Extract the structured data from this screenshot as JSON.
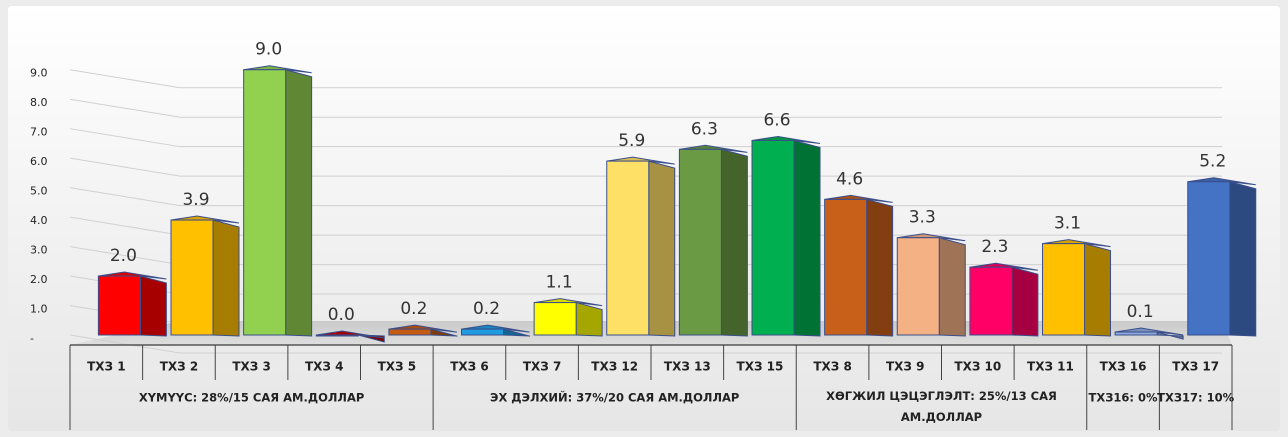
{
  "chart_data": {
    "type": "bar3d",
    "categories": [
      "ТХЗ 1",
      "ТХЗ 2",
      "ТХЗ 3",
      "ТХЗ 4",
      "ТХЗ 5",
      "ТХЗ 6",
      "ТХЗ 7",
      "ТХЗ 12",
      "ТХЗ 13",
      "ТХЗ 15",
      "ТХЗ 8",
      "ТХЗ 9",
      "ТХЗ 10",
      "ТХЗ 11",
      "ТХЗ 16",
      "ТХЗ 17"
    ],
    "values": [
      2.0,
      3.9,
      9.0,
      0.0,
      0.2,
      0.2,
      1.1,
      5.9,
      6.3,
      6.6,
      4.6,
      3.3,
      2.3,
      3.1,
      0.1,
      5.2
    ],
    "value_labels": [
      "2.0",
      "3.9",
      "9.0",
      "0.0",
      "0.2",
      "0.2",
      "1.1",
      "5.9",
      "6.3",
      "6.6",
      "4.6",
      "3.3",
      "2.3",
      "3.1",
      "0.1",
      "5.2"
    ],
    "colors": [
      "#ff0000",
      "#ffc000",
      "#92d050",
      "#c00000",
      "#c55a11",
      "#1f9be0",
      "#ffff00",
      "#ffe066",
      "#6a9a44",
      "#00b050",
      "#c8601a",
      "#f4b183",
      "#ff0066",
      "#ffc000",
      "#8faadc",
      "#4472c4"
    ],
    "groups": [
      {
        "name": "ХҮМҮҮС:  28%/15  САЯ  АМ.ДОЛЛАР",
        "count": 5
      },
      {
        "name": "ЭХ  ДЭЛХИЙ:  37%/20  САЯ  АМ.ДОЛЛАР",
        "count": 5
      },
      {
        "name": "ХӨГЖИЛ  ЦЭЦЭГЛЭЛТ:  25%/13  САЯ АМ.ДОЛЛАР",
        "count": 4
      },
      {
        "name": "ТХЗ16: 0%",
        "count": 1
      },
      {
        "name": "ТХЗ17: 10%",
        "count": 1
      }
    ],
    "ylim": [
      0,
      9.5
    ],
    "yticks": [
      {
        "value": 0,
        "label": "-"
      },
      {
        "value": 1,
        "label": "1.0"
      },
      {
        "value": 2,
        "label": "2.0"
      },
      {
        "value": 3,
        "label": "3.0"
      },
      {
        "value": 4,
        "label": "4.0"
      },
      {
        "value": 5,
        "label": "5.0"
      },
      {
        "value": 6,
        "label": "6.0"
      },
      {
        "value": 7,
        "label": "7.0"
      },
      {
        "value": 8,
        "label": "8.0"
      },
      {
        "value": 9,
        "label": "9.0"
      }
    ],
    "grid": true
  }
}
